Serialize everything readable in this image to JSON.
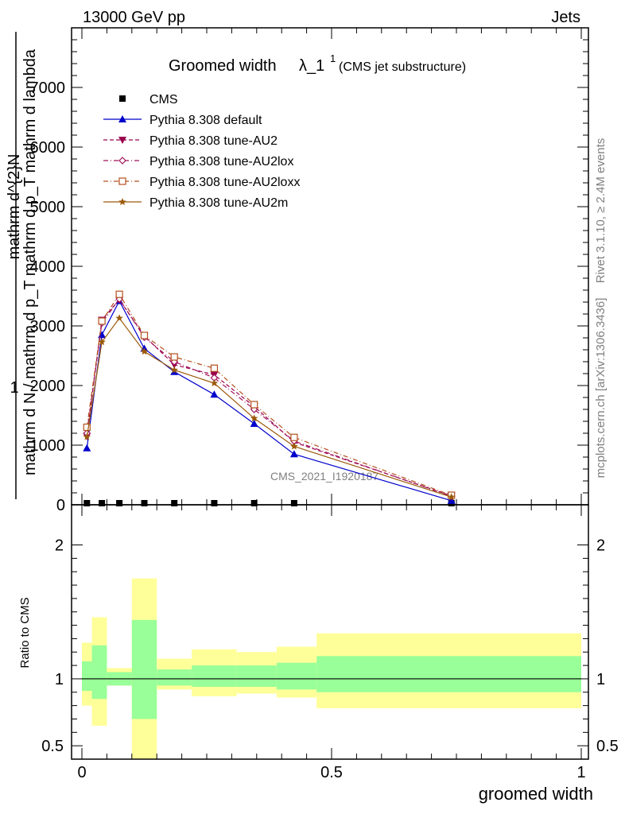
{
  "header": {
    "left": "13000 GeV pp",
    "right": "Jets"
  },
  "title": {
    "main": "Groomed width",
    "symbol": "λ_1",
    "superscript": "1",
    "suffix": "(CMS jet substructure)"
  },
  "side_labels": {
    "rivet": "Rivet 3.1.10, ≥ 2.4M events",
    "mcplots": "mcplots.cern.ch [arXiv:1306.3436]"
  },
  "watermark": "CMS_2021_I1920187",
  "ylabel_main": {
    "one": "1",
    "upper": "mathrm d^{2}N",
    "lower": "mathrm d N / mathrm d p_T mathrm d p_T mathrm d lambda"
  },
  "ylabel_ratio": "Ratio to CMS",
  "xlabel": "groomed width",
  "colors": {
    "cms": "#000000",
    "default": "#0000cc",
    "au2": "#99004d",
    "au2lox": "#a0145a",
    "au2loxx": "#b4501e",
    "au2m": "#9b5a0a",
    "band_inner": "#99ff99",
    "band_outer": "#ffff99"
  },
  "chart_data": [
    {
      "type": "line",
      "xlim": [
        0,
        1
      ],
      "ylim": [
        0,
        8000
      ],
      "yticks": [
        0,
        1000,
        2000,
        3000,
        4000,
        5000,
        6000,
        7000
      ],
      "yticklabels": [
        "0",
        "1000",
        "2000",
        "3000",
        "4000",
        "5000",
        "6000",
        "7000"
      ],
      "legend_position": "top-left",
      "grid": false,
      "x": [
        0.01,
        0.04,
        0.075,
        0.125,
        0.185,
        0.265,
        0.345,
        0.425,
        0.74
      ],
      "series": [
        {
          "name": "CMS",
          "key": "cms",
          "marker": "square",
          "style": "none",
          "values": [
            0,
            0,
            0,
            0,
            0,
            0,
            0,
            0,
            0
          ]
        },
        {
          "name": "Pythia 8.308 default",
          "key": "default",
          "marker": "triangle-up",
          "style": "solid",
          "values": [
            950,
            2850,
            3420,
            2620,
            2230,
            1850,
            1360,
            850,
            70
          ]
        },
        {
          "name": "Pythia 8.308 tune-AU2",
          "key": "au2",
          "marker": "triangle-down",
          "style": "dashed",
          "values": [
            1150,
            3100,
            3440,
            2830,
            2350,
            2180,
            1650,
            1050,
            150
          ]
        },
        {
          "name": "Pythia 8.308 tune-AU2lox",
          "key": "au2lox",
          "marker": "diamond",
          "style": "dashdot",
          "values": [
            1200,
            3050,
            3450,
            2810,
            2400,
            2130,
            1600,
            1070,
            140
          ]
        },
        {
          "name": "Pythia 8.308 tune-AU2loxx",
          "key": "au2loxx",
          "marker": "square-open",
          "style": "dashdot",
          "values": [
            1300,
            3080,
            3530,
            2840,
            2480,
            2290,
            1680,
            1130,
            160
          ]
        },
        {
          "name": "Pythia 8.308 tune-AU2m",
          "key": "au2m",
          "marker": "star",
          "style": "solid",
          "values": [
            1140,
            2730,
            3130,
            2570,
            2260,
            2040,
            1450,
            980,
            130
          ]
        }
      ]
    },
    {
      "type": "area",
      "xlim": [
        0,
        1
      ],
      "ylim": [
        0.4,
        2.3
      ],
      "yticks": [
        0.5,
        1,
        2
      ],
      "yticklabels": [
        "0.5",
        "1",
        "2"
      ],
      "xticks": [
        0,
        0.5,
        1
      ],
      "xticklabels": [
        "0",
        "0.5",
        "1"
      ],
      "reference_line": 1,
      "bins": [
        {
          "x0": 0.0,
          "x1": 0.02,
          "inner": [
            0.91,
            1.13
          ],
          "outer": [
            0.8,
            1.27
          ]
        },
        {
          "x0": 0.02,
          "x1": 0.05,
          "inner": [
            0.85,
            1.25
          ],
          "outer": [
            0.65,
            1.46
          ]
        },
        {
          "x0": 0.05,
          "x1": 0.1,
          "inner": [
            0.95,
            1.05
          ],
          "outer": [
            0.95,
            1.08
          ]
        },
        {
          "x0": 0.1,
          "x1": 0.15,
          "inner": [
            0.7,
            1.44
          ],
          "outer": [
            0.3,
            1.75
          ]
        },
        {
          "x0": 0.15,
          "x1": 0.22,
          "inner": [
            0.95,
            1.07
          ],
          "outer": [
            0.92,
            1.15
          ]
        },
        {
          "x0": 0.22,
          "x1": 0.31,
          "inner": [
            0.94,
            1.1
          ],
          "outer": [
            0.87,
            1.22
          ]
        },
        {
          "x0": 0.31,
          "x1": 0.39,
          "inner": [
            0.94,
            1.1
          ],
          "outer": [
            0.89,
            1.2
          ]
        },
        {
          "x0": 0.39,
          "x1": 0.47,
          "inner": [
            0.92,
            1.12
          ],
          "outer": [
            0.86,
            1.24
          ]
        },
        {
          "x0": 0.47,
          "x1": 1.0,
          "inner": [
            0.9,
            1.17
          ],
          "outer": [
            0.78,
            1.34
          ]
        }
      ]
    }
  ]
}
